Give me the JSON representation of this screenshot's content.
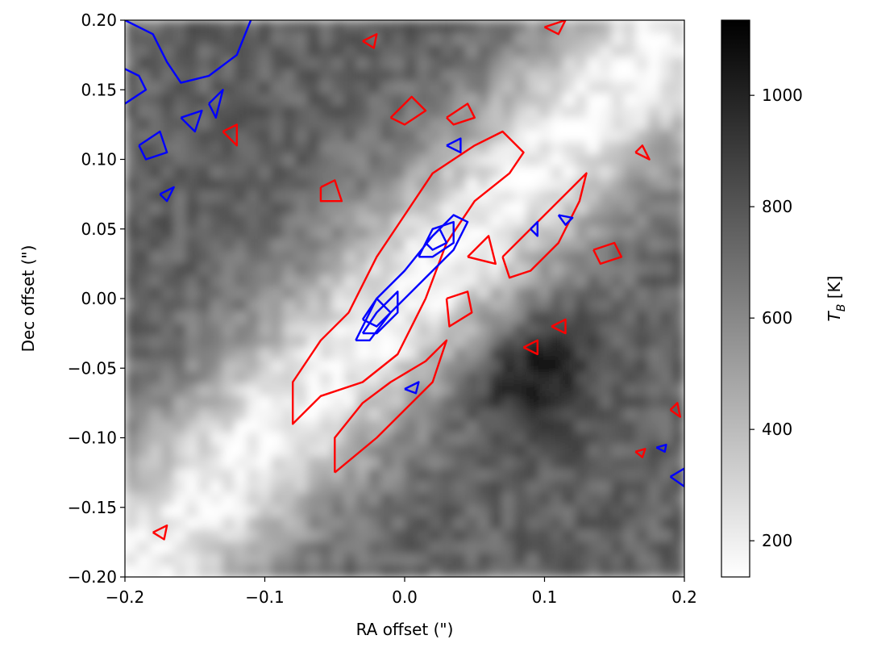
{
  "chart_data": {
    "type": "heatmap",
    "xlabel": "RA offset (\")",
    "ylabel": "Dec offset (\")",
    "xlim": [
      -0.2,
      0.2
    ],
    "ylim": [
      -0.2,
      0.2
    ],
    "xticks": [
      -0.2,
      -0.1,
      0.0,
      0.1,
      0.2
    ],
    "xtick_labels": [
      "−0.2",
      "−0.1",
      "0.0",
      "0.1",
      "0.2"
    ],
    "yticks": [
      0.2,
      0.15,
      0.1,
      0.05,
      0.0,
      -0.05,
      -0.1,
      -0.15,
      -0.2
    ],
    "ytick_labels": [
      "0.20",
      "0.15",
      "0.10",
      "0.05",
      "0.00",
      "−0.05",
      "−0.10",
      "−0.15",
      "−0.20"
    ],
    "colorbar": {
      "label": "T",
      "label_sub": "B",
      "label_unit": " [K]",
      "range": [
        135,
        1135
      ],
      "ticks": [
        200,
        400,
        600,
        800,
        1000
      ],
      "tick_labels": [
        "200",
        "400",
        "600",
        "800",
        "1000"
      ],
      "colormap": "gray_r"
    },
    "image": {
      "description_values": "brightness temperature map; bright diagonal band from lower-left to upper-right, darker regions upper-left and lower-right",
      "band_center_ra": 0.0,
      "band_center_dec": 0.0,
      "band_angle_deg": 45,
      "band_temperature_K": 180,
      "background_temperature_K": 750,
      "dark_spot": {
        "ra": 0.09,
        "dec": -0.05,
        "temperature_K": 1100
      }
    },
    "contours": [
      {
        "color": "#ff0000",
        "paths": [
          [
            [
              -0.04,
              -0.01
            ],
            [
              -0.02,
              0.03
            ],
            [
              0.0,
              0.06
            ],
            [
              0.02,
              0.09
            ],
            [
              0.05,
              0.11
            ],
            [
              0.07,
              0.12
            ],
            [
              0.085,
              0.105
            ],
            [
              0.075,
              0.09
            ],
            [
              0.05,
              0.07
            ],
            [
              0.03,
              0.04
            ],
            [
              0.015,
              0.0
            ],
            [
              -0.005,
              -0.04
            ],
            [
              -0.03,
              -0.06
            ],
            [
              -0.06,
              -0.07
            ],
            [
              -0.08,
              -0.09
            ],
            [
              -0.08,
              -0.06
            ],
            [
              -0.06,
              -0.03
            ],
            [
              -0.04,
              -0.01
            ]
          ],
          [
            [
              -0.05,
              -0.125
            ],
            [
              -0.02,
              -0.1
            ],
            [
              0.0,
              -0.08
            ],
            [
              0.02,
              -0.06
            ],
            [
              0.03,
              -0.03
            ],
            [
              0.015,
              -0.045
            ],
            [
              -0.01,
              -0.06
            ],
            [
              -0.03,
              -0.075
            ],
            [
              -0.05,
              -0.1
            ],
            [
              -0.05,
              -0.125
            ]
          ],
          [
            [
              0.07,
              0.03
            ],
            [
              0.1,
              0.06
            ],
            [
              0.12,
              0.08
            ],
            [
              0.13,
              0.09
            ],
            [
              0.125,
              0.07
            ],
            [
              0.11,
              0.04
            ],
            [
              0.09,
              0.02
            ],
            [
              0.075,
              0.015
            ],
            [
              0.07,
              0.03
            ]
          ],
          [
            [
              0.045,
              0.03
            ],
            [
              0.065,
              0.025
            ],
            [
              0.06,
              0.045
            ],
            [
              0.045,
              0.03
            ]
          ],
          [
            [
              0.03,
              0.0
            ],
            [
              0.045,
              0.005
            ],
            [
              0.048,
              -0.01
            ],
            [
              0.032,
              -0.02
            ],
            [
              0.03,
              0.0
            ]
          ],
          [
            [
              0.135,
              0.035
            ],
            [
              0.15,
              0.04
            ],
            [
              0.155,
              0.03
            ],
            [
              0.14,
              0.025
            ],
            [
              0.135,
              0.035
            ]
          ],
          [
            [
              -0.06,
              0.08
            ],
            [
              -0.05,
              0.085
            ],
            [
              -0.045,
              0.07
            ],
            [
              -0.06,
              0.07
            ],
            [
              -0.06,
              0.08
            ]
          ],
          [
            [
              -0.01,
              0.13
            ],
            [
              0.005,
              0.145
            ],
            [
              0.015,
              0.135
            ],
            [
              0.0,
              0.125
            ],
            [
              -0.01,
              0.13
            ]
          ],
          [
            [
              0.03,
              0.13
            ],
            [
              0.045,
              0.14
            ],
            [
              0.05,
              0.13
            ],
            [
              0.035,
              0.125
            ],
            [
              0.03,
              0.13
            ]
          ],
          [
            [
              -0.13,
              0.12
            ],
            [
              -0.12,
              0.125
            ],
            [
              -0.12,
              0.11
            ],
            [
              -0.13,
              0.12
            ]
          ],
          [
            [
              -0.03,
              0.185
            ],
            [
              -0.02,
              0.19
            ],
            [
              -0.022,
              0.18
            ],
            [
              -0.03,
              0.185
            ]
          ],
          [
            [
              0.1,
              0.195
            ],
            [
              0.115,
              0.2
            ],
            [
              0.11,
              0.19
            ],
            [
              0.1,
              0.195
            ]
          ],
          [
            [
              0.165,
              0.105
            ],
            [
              0.17,
              0.11
            ],
            [
              0.175,
              0.1
            ],
            [
              0.165,
              0.105
            ]
          ],
          [
            [
              0.085,
              -0.035
            ],
            [
              0.095,
              -0.03
            ],
            [
              0.095,
              -0.04
            ],
            [
              0.085,
              -0.035
            ]
          ],
          [
            [
              0.105,
              -0.02
            ],
            [
              0.115,
              -0.015
            ],
            [
              0.115,
              -0.025
            ],
            [
              0.105,
              -0.02
            ]
          ],
          [
            [
              0.19,
              -0.08
            ],
            [
              0.195,
              -0.075
            ],
            [
              0.197,
              -0.085
            ],
            [
              0.19,
              -0.08
            ]
          ],
          [
            [
              -0.18,
              -0.168
            ],
            [
              -0.17,
              -0.163
            ],
            [
              -0.172,
              -0.173
            ],
            [
              -0.18,
              -0.168
            ]
          ],
          [
            [
              0.165,
              -0.11
            ],
            [
              0.172,
              -0.108
            ],
            [
              0.17,
              -0.114
            ],
            [
              0.165,
              -0.11
            ]
          ]
        ]
      },
      {
        "color": "#0000ff",
        "paths": [
          [
            [
              -0.035,
              -0.03
            ],
            [
              -0.02,
              0.0
            ],
            [
              0.0,
              0.02
            ],
            [
              0.02,
              0.045
            ],
            [
              0.035,
              0.06
            ],
            [
              0.045,
              0.055
            ],
            [
              0.035,
              0.035
            ],
            [
              0.015,
              0.015
            ],
            [
              -0.01,
              -0.01
            ],
            [
              -0.025,
              -0.03
            ],
            [
              -0.035,
              -0.03
            ]
          ],
          [
            [
              -0.03,
              -0.025
            ],
            [
              -0.02,
              -0.01
            ],
            [
              -0.005,
              0.005
            ],
            [
              -0.005,
              -0.01
            ],
            [
              -0.02,
              -0.025
            ],
            [
              -0.03,
              -0.025
            ]
          ],
          [
            [
              -0.03,
              -0.015
            ],
            [
              -0.02,
              0.0
            ],
            [
              -0.01,
              -0.01
            ],
            [
              -0.02,
              -0.02
            ],
            [
              -0.03,
              -0.015
            ]
          ],
          [
            [
              0.01,
              0.03
            ],
            [
              0.02,
              0.05
            ],
            [
              0.035,
              0.055
            ],
            [
              0.035,
              0.04
            ],
            [
              0.02,
              0.03
            ],
            [
              0.01,
              0.03
            ]
          ],
          [
            [
              0.015,
              0.04
            ],
            [
              0.025,
              0.05
            ],
            [
              0.03,
              0.04
            ],
            [
              0.02,
              0.035
            ],
            [
              0.015,
              0.04
            ]
          ],
          [
            [
              -0.2,
              0.2
            ],
            [
              -0.18,
              0.19
            ],
            [
              -0.17,
              0.17
            ],
            [
              -0.16,
              0.155
            ],
            [
              -0.14,
              0.16
            ],
            [
              -0.12,
              0.175
            ],
            [
              -0.11,
              0.2
            ]
          ],
          [
            [
              -0.2,
              0.14
            ],
            [
              -0.185,
              0.15
            ],
            [
              -0.19,
              0.16
            ],
            [
              -0.2,
              0.165
            ]
          ],
          [
            [
              -0.19,
              0.11
            ],
            [
              -0.175,
              0.12
            ],
            [
              -0.17,
              0.105
            ],
            [
              -0.185,
              0.1
            ],
            [
              -0.19,
              0.11
            ]
          ],
          [
            [
              -0.16,
              0.13
            ],
            [
              -0.145,
              0.135
            ],
            [
              -0.15,
              0.12
            ],
            [
              -0.16,
              0.13
            ]
          ],
          [
            [
              -0.14,
              0.14
            ],
            [
              -0.13,
              0.15
            ],
            [
              -0.135,
              0.13
            ],
            [
              -0.14,
              0.14
            ]
          ],
          [
            [
              -0.175,
              0.075
            ],
            [
              -0.165,
              0.08
            ],
            [
              -0.17,
              0.07
            ],
            [
              -0.175,
              0.075
            ]
          ],
          [
            [
              0.03,
              0.11
            ],
            [
              0.04,
              0.115
            ],
            [
              0.04,
              0.105
            ],
            [
              0.03,
              0.11
            ]
          ],
          [
            [
              0.09,
              0.05
            ],
            [
              0.095,
              0.055
            ],
            [
              0.095,
              0.045
            ],
            [
              0.09,
              0.05
            ]
          ],
          [
            [
              0.11,
              0.06
            ],
            [
              0.12,
              0.058
            ],
            [
              0.115,
              0.053
            ],
            [
              0.11,
              0.06
            ]
          ],
          [
            [
              0.0,
              -0.065
            ],
            [
              0.01,
              -0.06
            ],
            [
              0.008,
              -0.068
            ],
            [
              0.0,
              -0.065
            ]
          ],
          [
            [
              0.18,
              -0.107
            ],
            [
              0.187,
              -0.105
            ],
            [
              0.186,
              -0.11
            ],
            [
              0.18,
              -0.107
            ]
          ],
          [
            [
              0.19,
              -0.128
            ],
            [
              0.2,
              -0.122
            ],
            [
              0.2,
              -0.135
            ],
            [
              0.19,
              -0.128
            ]
          ]
        ]
      }
    ]
  }
}
